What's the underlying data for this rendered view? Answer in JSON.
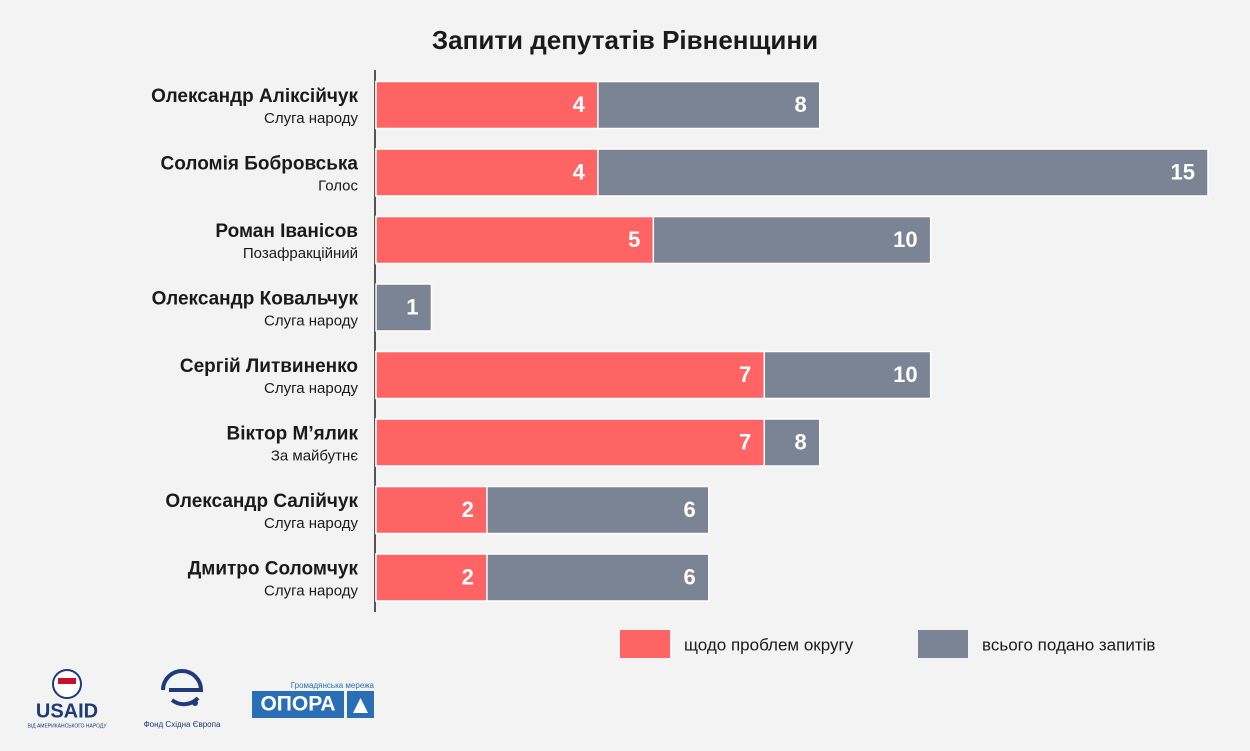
{
  "chart_data": {
    "type": "overlay-bar",
    "title": "Запити депутатів Рівненщини",
    "categories": [
      "Олександр Аліксійчук",
      "Соломія Бобровська",
      "Роман Іванісов",
      "Олександр Ковальчук",
      "Сергій Литвиненко",
      "Віктор М’ялик",
      "Олександр Салійчук",
      "Дмитро Соломчук"
    ],
    "parties": [
      "Слуга народу",
      "Голос",
      "Позафракційний",
      "Слуга народу",
      "Слуга народу",
      "За майбутнє",
      "Слуга народу",
      "Слуга народу"
    ],
    "series": [
      {
        "name": "всього подано запитів",
        "color": "#7a8494",
        "values": [
          8,
          15,
          10,
          1,
          10,
          8,
          6,
          6
        ]
      },
      {
        "name": "щодо проблем округу",
        "color": "#ff6464",
        "values": [
          4,
          4,
          5,
          null,
          7,
          7,
          2,
          2
        ]
      }
    ],
    "xlim": [
      0,
      15
    ],
    "legend": "bottom-right"
  },
  "footer": {
    "usaid": "USAID",
    "usaid_sub": "ВІД АМЕРИКАНСЬКОГО НАРОДУ",
    "fund": "Фонд Східна Європа",
    "opora_top": "Громадянська мережа",
    "opora": "ОПОРА"
  }
}
